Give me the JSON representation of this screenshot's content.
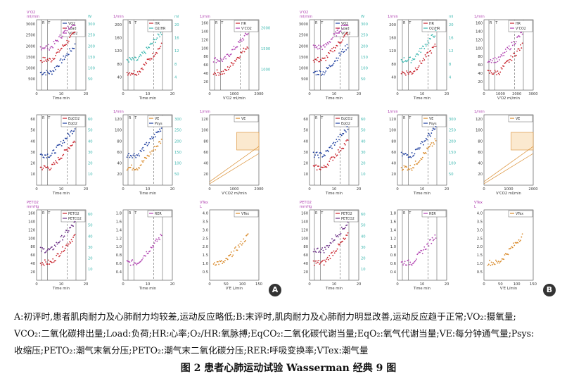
{
  "badges": {
    "a": "A",
    "b": "B"
  },
  "caption_lines": [
    "A:初评时,患者肌肉耐力及心肺耐力均较差,运动反应略低;B:末评时,肌肉耐力及心肺耐力明显改善,运动反应趋于正常;VO₂:摄氧量;",
    "VCO₂:二氧化碳排出量;Load:负荷;HR:心率;O₂/HR:氧脉搏;EqCO₂:二氧化碳代谢当量;EqO₂:氧气代谢当量;VE:每分钟通气量;Psys:",
    "收缩压;PETO₂:潮气末氧分压;PETO₂:潮气末二氧化碳分压;RER:呼吸变换率;VTex:潮气量"
  ],
  "figure_title": "图 2   患者心肺运动试验 Wasserman 经典 9 图",
  "colors": {
    "blue": "#1f3f9f",
    "red": "#c8202a",
    "magenta": "#b040b0",
    "teal": "#3cb8b0",
    "orange": "#d98a2a",
    "purple": "#6b2f86",
    "grid": "#555"
  },
  "chart_data": [
    {
      "type": "scatter",
      "panel": "A1",
      "yunit_left": "ml/min",
      "yunit_left_label": "V'O2",
      "yunit_right": "W",
      "xlabel": "Time min",
      "xlim": [
        0,
        20
      ],
      "xticks": [
        "0",
        "10",
        "20"
      ],
      "yticks_left": [
        "500",
        "1000",
        "1500",
        "2000",
        "2500",
        "3000"
      ],
      "yticks_right": [
        "50",
        "100",
        "150",
        "200",
        "250",
        "300"
      ],
      "phases": [
        "R",
        "T",
        "VT2",
        "R"
      ],
      "legend": [
        "VO2",
        "Load",
        "VCO2"
      ]
    },
    {
      "type": "scatter",
      "panel": "A2",
      "yunit_left": "1/min",
      "yunit_right": "ml",
      "xlabel": "Time min",
      "xlim": [
        0,
        20
      ],
      "xticks": [
        "0",
        "10",
        "20"
      ],
      "yticks_left": [
        "40",
        "80",
        "120",
        "160",
        "200"
      ],
      "yticks_right": [
        "4",
        "8",
        "12",
        "16",
        "20"
      ],
      "phases": [
        "R",
        "T",
        "VT2",
        "R"
      ],
      "legend": [
        "HR",
        "O2/HR"
      ]
    },
    {
      "type": "scatter",
      "panel": "A3",
      "yunit_left": "1/min",
      "xlabel": "V'O2 ml/min",
      "xlim": [
        0,
        2000
      ],
      "xticks": [
        "0",
        "1000",
        "2000"
      ],
      "yticks_left": [
        "20",
        "40",
        "60",
        "80",
        "100",
        "120",
        "140",
        "160"
      ],
      "yticks_right": [
        "1000",
        "1500",
        "2000"
      ],
      "phases": [
        "R",
        "T",
        "VT2",
        "R"
      ],
      "legend": [
        "HR",
        "V'CO2"
      ]
    },
    {
      "type": "scatter",
      "panel": "A4",
      "yunit_left": "",
      "xlabel": "Time min",
      "xlim": [
        0,
        20
      ],
      "xticks": [
        "0",
        "10",
        "20"
      ],
      "yticks_left": [
        "10",
        "20",
        "30",
        "40",
        "50",
        "60"
      ],
      "yticks_right": [
        "10",
        "20",
        "30",
        "40",
        "50",
        "60"
      ],
      "phases": [
        "R",
        "T",
        "VT2",
        "R"
      ],
      "legend": [
        "EqCO2",
        "EqO2"
      ]
    },
    {
      "type": "scatter",
      "panel": "A5",
      "yunit_left": "1/min",
      "xlabel": "Time min",
      "xlim": [
        0,
        20
      ],
      "xticks": [
        "0",
        "10",
        "20"
      ],
      "yticks_left": [
        "20",
        "40",
        "60",
        "80",
        "100",
        "120"
      ],
      "yticks_right": [
        "50",
        "100",
        "150",
        "200",
        "250",
        "300"
      ],
      "phases": [
        "R",
        "T",
        "VT2",
        "R"
      ],
      "legend": [
        "VE",
        "Psys"
      ]
    },
    {
      "type": "line",
      "panel": "A6",
      "yunit_left": "1/min",
      "xlabel": "V'CO2 ml/min",
      "xlim": [
        0,
        2000
      ],
      "xticks": [
        "0",
        "1000",
        "2000"
      ],
      "yticks_left": [
        "20",
        "40",
        "60",
        "80",
        "100",
        "120"
      ],
      "legend": [
        "VE"
      ]
    },
    {
      "type": "scatter",
      "panel": "A7",
      "yunit_left": "mmHg",
      "yunit_left_label": "PETO2",
      "xlabel": "Time min",
      "xlim": [
        0,
        20
      ],
      "xticks": [
        "0",
        "10",
        "20"
      ],
      "yticks_left": [
        "20",
        "40",
        "60",
        "80",
        "100",
        "120",
        "140",
        "160"
      ],
      "yticks_right": [
        "10",
        "20",
        "30",
        "40",
        "50",
        "60"
      ],
      "phases": [
        "R",
        "T",
        "VT2",
        "R"
      ],
      "legend": [
        "PETO2",
        "PETCO2"
      ]
    },
    {
      "type": "scatter",
      "panel": "A8",
      "yunit_left": "",
      "xlabel": "Time min",
      "xlim": [
        0,
        20
      ],
      "xticks": [
        "0",
        "10",
        "20"
      ],
      "yticks_left": [
        "0.4",
        "0.6",
        "0.8",
        "1.0",
        "1.2",
        "1.4",
        "1.6",
        "1.8"
      ],
      "phases": [
        "R",
        "T",
        "VT2",
        "R"
      ],
      "legend": [
        "RER"
      ]
    },
    {
      "type": "scatter",
      "panel": "A9",
      "yunit_left": "L",
      "yunit_left_label": "VTex",
      "xlabel": "V'E L/min",
      "xlim": [
        0,
        150
      ],
      "xticks": [
        "0",
        "50",
        "100",
        "150"
      ],
      "yticks_left": [
        "0.5",
        "1.0",
        "1.5",
        "2.0",
        "2.5",
        "3.0",
        "3.5",
        "4.0"
      ],
      "legend": [
        "VTex"
      ]
    },
    {
      "type": "scatter",
      "panel": "B1",
      "yunit_left": "ml/min",
      "yunit_left_label": "V'O2",
      "yunit_right": "W",
      "xlabel": "Time min",
      "xlim": [
        0,
        20
      ],
      "xticks": [
        "0",
        "10",
        "20"
      ],
      "yticks_left": [
        "500",
        "1000",
        "1500",
        "2000",
        "2500",
        "3000"
      ],
      "yticks_right": [
        "50",
        "100",
        "150",
        "200",
        "250",
        "300"
      ],
      "phases": [
        "R",
        "T",
        "VT2",
        "R"
      ],
      "legend": [
        "VO2",
        "Load",
        "VCO2"
      ]
    },
    {
      "type": "scatter",
      "panel": "B2",
      "yunit_left": "1/min",
      "yunit_right": "ml",
      "xlabel": "Time min",
      "xlim": [
        0,
        20
      ],
      "xticks": [
        "0",
        "10",
        "20"
      ],
      "yticks_left": [
        "40",
        "80",
        "120",
        "160",
        "200"
      ],
      "yticks_right": [
        "4",
        "8",
        "12",
        "16",
        "20"
      ],
      "phases": [
        "R",
        "T",
        "VT2",
        "R"
      ],
      "legend": [
        "HR",
        "O2/HR"
      ]
    },
    {
      "type": "scatter",
      "panel": "B3",
      "yunit_left": "1/min",
      "xlabel": "V'O2 ml/min",
      "xlim": [
        0,
        3000
      ],
      "xticks": [
        "0",
        "1000",
        "2000",
        "3000"
      ],
      "yticks_left": [
        "20",
        "40",
        "60",
        "80",
        "100",
        "120",
        "140",
        "160"
      ],
      "phases": [
        "R",
        "T",
        "VT2",
        "R"
      ],
      "legend": [
        "HR",
        "V'CO2"
      ]
    },
    {
      "type": "scatter",
      "panel": "B4",
      "yunit_left": "",
      "xlabel": "Time min",
      "xlim": [
        0,
        20
      ],
      "xticks": [
        "0",
        "10",
        "20"
      ],
      "yticks_left": [
        "10",
        "20",
        "30",
        "40",
        "50",
        "60"
      ],
      "yticks_right": [
        "10",
        "20",
        "30",
        "40",
        "50",
        "60"
      ],
      "phases": [
        "R",
        "T",
        "VT2",
        "R"
      ],
      "legend": [
        "EqCO2",
        "EqO2"
      ]
    },
    {
      "type": "scatter",
      "panel": "B5",
      "yunit_left": "1/min",
      "xlabel": "Time min",
      "xlim": [
        0,
        20
      ],
      "xticks": [
        "0",
        "10",
        "20"
      ],
      "yticks_left": [
        "20",
        "40",
        "60",
        "80",
        "100",
        "120"
      ],
      "yticks_right": [
        "50",
        "100",
        "150",
        "200",
        "250",
        "300"
      ],
      "phases": [
        "R",
        "T",
        "VT2",
        "R"
      ],
      "legend": [
        "VE",
        "Psys"
      ]
    },
    {
      "type": "line",
      "panel": "B6",
      "yunit_left": "1/min",
      "xlabel": "V'CO2 ml/min",
      "xlim": [
        0,
        3000
      ],
      "xticks": [
        "0",
        "1000",
        "2000"
      ],
      "yticks_left": [
        "20",
        "40",
        "60",
        "80",
        "100",
        "120"
      ],
      "legend": [
        "VE"
      ]
    },
    {
      "type": "scatter",
      "panel": "B7",
      "yunit_left": "mmHg",
      "yunit_left_label": "PETO2",
      "xlabel": "Time min",
      "xlim": [
        0,
        20
      ],
      "xticks": [
        "0",
        "10",
        "20"
      ],
      "yticks_left": [
        "20",
        "40",
        "60",
        "80",
        "100",
        "120",
        "140",
        "160"
      ],
      "yticks_right": [
        "10",
        "20",
        "30",
        "40",
        "50",
        "60"
      ],
      "phases": [
        "R",
        "T",
        "VT2",
        "R"
      ],
      "legend": [
        "PETO2",
        "PETCO2"
      ]
    },
    {
      "type": "scatter",
      "panel": "B8",
      "yunit_left": "",
      "xlabel": "Time min",
      "xlim": [
        0,
        20
      ],
      "xticks": [
        "0",
        "10",
        "20"
      ],
      "yticks_left": [
        "0.4",
        "0.6",
        "0.8",
        "1.0",
        "1.2",
        "1.4",
        "1.6",
        "1.8"
      ],
      "phases": [
        "R",
        "T",
        "VT2",
        "R"
      ],
      "legend": [
        "RER"
      ]
    },
    {
      "type": "scatter",
      "panel": "B9",
      "yunit_left": "L",
      "yunit_left_label": "VTex",
      "xlabel": "V'E L/min",
      "xlim": [
        0,
        150
      ],
      "xticks": [
        "0",
        "50",
        "100",
        "150"
      ],
      "yticks_left": [
        "0.5",
        "1.0",
        "1.5",
        "2.0",
        "2.5",
        "3.0",
        "3.5",
        "4.0"
      ],
      "legend": [
        "VTex"
      ]
    }
  ]
}
